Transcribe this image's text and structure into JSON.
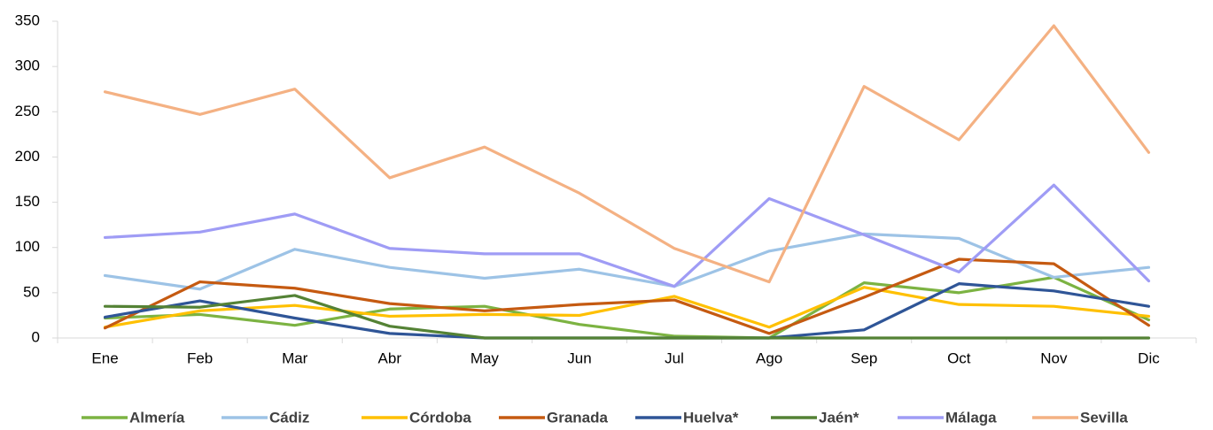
{
  "chart_data": {
    "type": "line",
    "categories": [
      "Ene",
      "Feb",
      "Mar",
      "Abr",
      "May",
      "Jun",
      "Jul",
      "Ago",
      "Sep",
      "Oct",
      "Nov",
      "Dic"
    ],
    "series": [
      {
        "name": "Almería",
        "color": "#7cb342",
        "values": [
          22,
          26,
          14,
          32,
          35,
          15,
          2,
          0,
          61,
          50,
          67,
          20
        ]
      },
      {
        "name": "Cádiz",
        "color": "#9dc3e6",
        "values": [
          69,
          54,
          98,
          78,
          66,
          76,
          57,
          96,
          115,
          110,
          67,
          78
        ]
      },
      {
        "name": "Córdoba",
        "color": "#ffc000",
        "values": [
          12,
          30,
          36,
          24,
          26,
          25,
          46,
          12,
          56,
          37,
          35,
          24
        ]
      },
      {
        "name": "Granada",
        "color": "#c55a11",
        "values": [
          11,
          62,
          55,
          38,
          30,
          37,
          42,
          5,
          45,
          87,
          82,
          14
        ]
      },
      {
        "name": "Huelva*",
        "color": "#2f5597",
        "values": [
          23,
          41,
          22,
          5,
          0,
          0,
          0,
          0,
          9,
          60,
          52,
          35
        ]
      },
      {
        "name": "Jaén*",
        "color": "#548235",
        "values": [
          35,
          34,
          47,
          13,
          0,
          0,
          0,
          0,
          0,
          0,
          0,
          0
        ]
      },
      {
        "name": "Málaga",
        "color": "#9f9cf5",
        "values": [
          111,
          117,
          137,
          99,
          93,
          93,
          57,
          154,
          114,
          73,
          169,
          63
        ]
      },
      {
        "name": "Sevilla",
        "color": "#f4b183",
        "values": [
          272,
          247,
          275,
          177,
          211,
          160,
          99,
          62,
          278,
          219,
          345,
          205
        ]
      }
    ],
    "ylim": [
      0,
      350
    ],
    "yticks": [
      0,
      50,
      100,
      150,
      200,
      250,
      300,
      350
    ],
    "legend": "bottom"
  }
}
